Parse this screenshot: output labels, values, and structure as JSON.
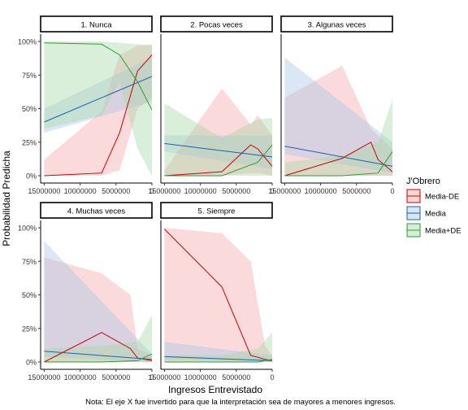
{
  "chart_data": {
    "type": "line",
    "xlabel": "Ingresos Entrevistado",
    "ylabel": "Probabilidad Predicha",
    "caption": "Nota: El eje X fue invertido para que la interpretación sea de mayores a menores ingresos.",
    "x_reversed": true,
    "xlim": [
      15500000,
      0
    ],
    "ylim": [
      0,
      1
    ],
    "x_ticks": [
      15000000,
      10000000,
      5000000,
      0
    ],
    "x_tick_labels": [
      "15000000",
      "10000000",
      "5000000",
      "0"
    ],
    "y_ticks": [
      0,
      0.25,
      0.5,
      0.75,
      1
    ],
    "y_tick_labels": [
      "0%",
      "25%",
      "50%",
      "75%",
      "100%"
    ],
    "legend": {
      "title": "J'Obrero",
      "position": "right",
      "entries": [
        {
          "label": "Media-DE",
          "color": "#cc0000",
          "fill": "#f4a6a6"
        },
        {
          "label": "Media",
          "color": "#1f5fa8",
          "fill": "#a9c6e8"
        },
        {
          "label": "Media+DE",
          "color": "#2e9e2e",
          "fill": "#a8d8a8"
        }
      ]
    },
    "panels": [
      {
        "strip": "1. Nunca",
        "series": [
          {
            "name": "Media-DE",
            "x": [
              15000000,
              7000000,
              4500000,
              2000000,
              0
            ],
            "y": [
              0.0,
              0.02,
              0.32,
              0.78,
              0.9
            ],
            "lower": [
              0.0,
              0.0,
              0.04,
              0.5,
              0.58
            ],
            "upper": [
              0.12,
              0.48,
              0.9,
              0.97,
              0.98
            ]
          },
          {
            "name": "Media",
            "x": [
              15000000,
              0
            ],
            "y": [
              0.4,
              0.74
            ],
            "lower": [
              0.32,
              0.55
            ],
            "upper": [
              0.5,
              0.88
            ]
          },
          {
            "name": "Media+DE",
            "x": [
              15000000,
              7000000,
              4500000,
              2000000,
              0
            ],
            "y": [
              0.99,
              0.98,
              0.9,
              0.7,
              0.49
            ],
            "lower": [
              0.35,
              0.45,
              0.7,
              0.2,
              0.0
            ],
            "upper": [
              1.0,
              1.0,
              0.99,
              0.98,
              0.97
            ]
          }
        ]
      },
      {
        "strip": "2. Pocas veces",
        "series": [
          {
            "name": "Media-DE",
            "x": [
              15000000,
              7000000,
              3000000,
              2000000,
              0
            ],
            "y": [
              0.0,
              0.03,
              0.23,
              0.2,
              0.07
            ],
            "lower": [
              0.0,
              0.0,
              0.02,
              0.02,
              0.0
            ],
            "upper": [
              0.04,
              0.65,
              0.38,
              0.45,
              0.3
            ]
          },
          {
            "name": "Media",
            "x": [
              15000000,
              0
            ],
            "y": [
              0.24,
              0.14
            ],
            "lower": [
              0.18,
              0.05
            ],
            "upper": [
              0.3,
              0.3
            ]
          },
          {
            "name": "Media+DE",
            "x": [
              15000000,
              7000000,
              2000000,
              0
            ],
            "y": [
              0.0,
              0.0,
              0.1,
              0.23
            ],
            "lower": [
              0.0,
              0.0,
              0.0,
              0.0
            ],
            "upper": [
              0.54,
              0.28,
              0.42,
              0.43
            ]
          }
        ]
      },
      {
        "strip": "3. Algunas veces",
        "series": [
          {
            "name": "Media-DE",
            "x": [
              15000000,
              7000000,
              3000000,
              2000000,
              0
            ],
            "y": [
              0.0,
              0.13,
              0.25,
              0.12,
              0.03
            ],
            "lower": [
              0.0,
              0.0,
              0.0,
              0.0,
              0.0
            ],
            "upper": [
              0.58,
              0.82,
              0.35,
              0.3,
              0.2
            ]
          },
          {
            "name": "Media",
            "x": [
              15000000,
              0
            ],
            "y": [
              0.22,
              0.07
            ],
            "lower": [
              0.16,
              0.02
            ],
            "upper": [
              0.88,
              0.25
            ]
          },
          {
            "name": "Media+DE",
            "x": [
              15000000,
              7000000,
              2000000,
              0
            ],
            "y": [
              0.0,
              0.0,
              0.02,
              0.18
            ],
            "lower": [
              0.0,
              0.0,
              0.0,
              0.0
            ],
            "upper": [
              0.1,
              0.15,
              0.25,
              0.57
            ]
          }
        ]
      },
      {
        "strip": "4. Muchas veces",
        "series": [
          {
            "name": "Media-DE",
            "x": [
              15000000,
              7000000,
              3000000,
              2000000,
              0
            ],
            "y": [
              0.0,
              0.22,
              0.1,
              0.03,
              0.01
            ],
            "lower": [
              0.0,
              0.0,
              0.0,
              0.0,
              0.0
            ],
            "upper": [
              0.78,
              0.66,
              0.5,
              0.1,
              0.05
            ]
          },
          {
            "name": "Media",
            "x": [
              15000000,
              0
            ],
            "y": [
              0.08,
              0.02
            ],
            "lower": [
              0.04,
              0.0
            ],
            "upper": [
              0.9,
              0.06
            ]
          },
          {
            "name": "Media+DE",
            "x": [
              15000000,
              7000000,
              2000000,
              0
            ],
            "y": [
              0.0,
              0.0,
              0.01,
              0.06
            ],
            "lower": [
              0.0,
              0.0,
              0.0,
              0.0
            ],
            "upper": [
              0.1,
              0.12,
              0.15,
              0.35
            ]
          }
        ]
      },
      {
        "strip": "5. Siempre",
        "series": [
          {
            "name": "Media-DE",
            "x": [
              15000000,
              7000000,
              3000000,
              1000000,
              0
            ],
            "y": [
              0.99,
              0.56,
              0.05,
              0.02,
              0.01
            ],
            "lower": [
              0.0,
              0.0,
              0.0,
              0.0,
              0.0
            ],
            "upper": [
              1.0,
              0.96,
              0.75,
              0.12,
              0.05
            ]
          },
          {
            "name": "Media",
            "x": [
              15000000,
              0
            ],
            "y": [
              0.04,
              0.01
            ],
            "lower": [
              0.02,
              0.0
            ],
            "upper": [
              0.15,
              0.05
            ]
          },
          {
            "name": "Media+DE",
            "x": [
              15000000,
              7000000,
              2000000,
              0
            ],
            "y": [
              0.0,
              0.0,
              0.0,
              0.02
            ],
            "lower": [
              0.0,
              0.0,
              0.0,
              0.0
            ],
            "upper": [
              0.05,
              0.05,
              0.1,
              0.22
            ]
          }
        ]
      }
    ]
  }
}
